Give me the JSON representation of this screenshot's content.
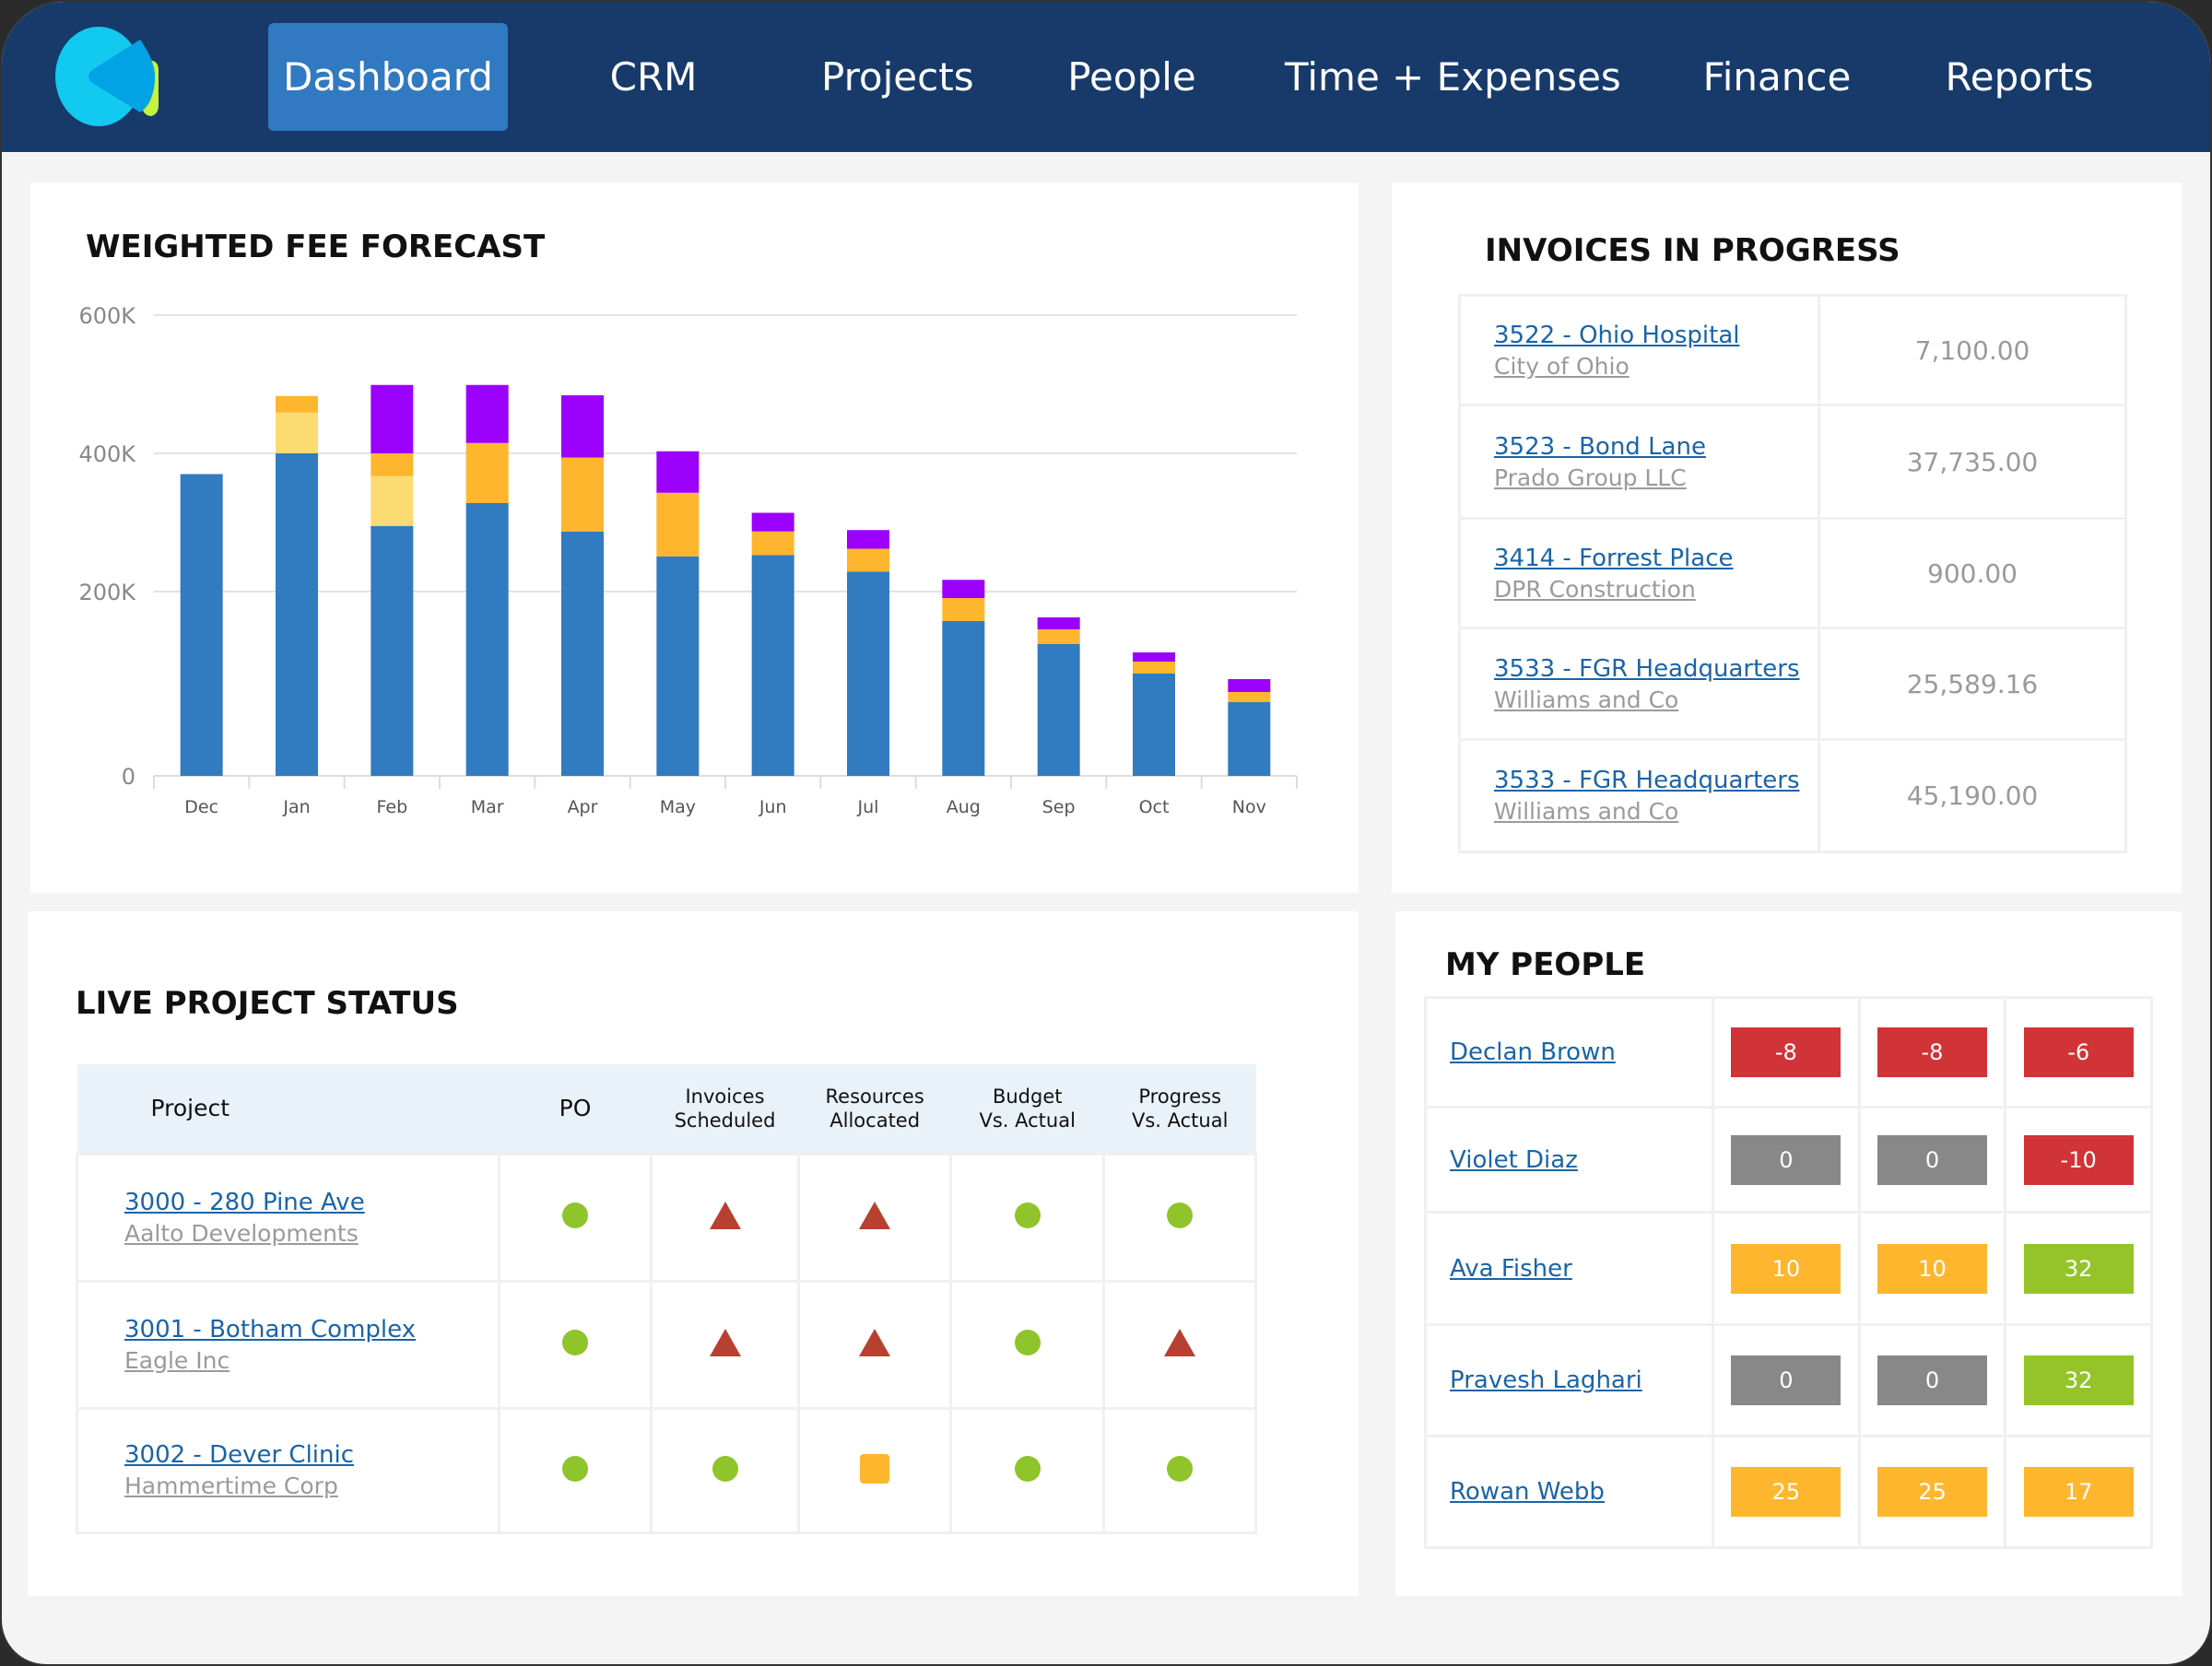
{
  "nav": {
    "items": [
      "Dashboard",
      "CRM",
      "Projects",
      "People",
      "Time + Expenses",
      "Finance",
      "Reports"
    ],
    "active": "Dashboard"
  },
  "colors": {
    "nav_bg": "#173a6b",
    "active": "#3179c1",
    "blue": "#317bc0",
    "orange": "#fdb62e",
    "light_yellow": "#fddb73",
    "purple": "#9b00fd",
    "green": "#8fc42a",
    "red": "#b84031",
    "badge_red": "#d03437",
    "badge_gray": "#888888",
    "badge_green": "#95c42a"
  },
  "forecast": {
    "title": "WEIGHTED FEE FORECAST"
  },
  "chart_data": {
    "type": "bar",
    "stacked": true,
    "title": "WEIGHTED FEE FORECAST",
    "categories": [
      "Dec",
      "Jan",
      "Feb",
      "Mar",
      "Apr",
      "May",
      "Jun",
      "Jul",
      "Aug",
      "Sep",
      "Oct",
      "Nov"
    ],
    "yticks": [
      "0",
      "200K",
      "400K",
      "600K"
    ],
    "ytick_values": [
      0,
      200,
      400,
      600
    ],
    "ylim": [
      0,
      600
    ],
    "units": "K",
    "grid": true,
    "series": [
      {
        "color": "#317bc0",
        "values": [
          370,
          400,
          295,
          328,
          287,
          251,
          253,
          229,
          168,
          143,
          111,
          80
        ]
      },
      {
        "color": "#fddb73",
        "values": [
          0,
          59,
          72,
          0,
          0,
          0,
          0,
          0,
          0,
          0,
          0,
          0
        ]
      },
      {
        "color": "#fdb62e",
        "values": [
          0,
          24,
          33,
          87,
          107,
          92,
          34,
          33,
          25,
          16,
          13,
          11
        ]
      },
      {
        "color": "#9b00fd",
        "values": [
          0,
          0,
          99,
          84,
          90,
          60,
          27,
          27,
          24,
          13,
          10,
          14
        ]
      }
    ]
  },
  "invoices": {
    "title": "INVOICES IN PROGRESS",
    "rows": [
      {
        "project": "3522 - Ohio Hospital",
        "client": "City of Ohio",
        "amount": "7,100.00"
      },
      {
        "project": "3523 - Bond Lane",
        "client": "Prado Group LLC",
        "amount": "37,735.00"
      },
      {
        "project": "3414 - Forrest Place",
        "client": "DPR Construction",
        "amount": "900.00"
      },
      {
        "project": "3533 - FGR Headquarters",
        "client": "Williams and Co",
        "amount": "25,589.16"
      },
      {
        "project": "3533 - FGR Headquarters",
        "client": "Williams and Co",
        "amount": "45,190.00"
      }
    ]
  },
  "live": {
    "title": "LIVE PROJECT STATUS",
    "headers": {
      "project": "Project",
      "po": "PO",
      "inv1": "Invoices",
      "inv2": "Scheduled",
      "res1": "Resources",
      "res2": "Allocated",
      "bud1": "Budget",
      "bud2": "Vs. Actual",
      "prog1": "Progress",
      "prog2": "Vs. Actual"
    },
    "rows": [
      {
        "project": "3000 - 280 Pine Ave",
        "client": "Aalto Developments",
        "status": [
          "good",
          "bad",
          "bad",
          "good",
          "good"
        ]
      },
      {
        "project": "3001 - Botham Complex",
        "client": "Eagle Inc",
        "status": [
          "good",
          "bad",
          "bad",
          "good",
          "bad"
        ]
      },
      {
        "project": "3002 - Dever Clinic",
        "client": "Hammertime Corp",
        "status": [
          "good",
          "good",
          "warn",
          "good",
          "good"
        ]
      }
    ]
  },
  "people": {
    "title": "MY PEOPLE",
    "rows": [
      {
        "name": "Declan Brown",
        "values": [
          {
            "v": "-8",
            "c": "red"
          },
          {
            "v": "-8",
            "c": "red"
          },
          {
            "v": "-6",
            "c": "red"
          }
        ]
      },
      {
        "name": "Violet Diaz",
        "values": [
          {
            "v": "0",
            "c": "gray"
          },
          {
            "v": "0",
            "c": "gray"
          },
          {
            "v": "-10",
            "c": "red"
          }
        ]
      },
      {
        "name": "Ava Fisher",
        "values": [
          {
            "v": "10",
            "c": "orange"
          },
          {
            "v": "10",
            "c": "orange"
          },
          {
            "v": "32",
            "c": "green"
          }
        ]
      },
      {
        "name": "Pravesh Laghari",
        "values": [
          {
            "v": "0",
            "c": "gray"
          },
          {
            "v": "0",
            "c": "gray"
          },
          {
            "v": "32",
            "c": "green"
          }
        ]
      },
      {
        "name": "Rowan Webb",
        "values": [
          {
            "v": "25",
            "c": "orange"
          },
          {
            "v": "25",
            "c": "orange"
          },
          {
            "v": "17",
            "c": "orange"
          }
        ]
      }
    ]
  }
}
